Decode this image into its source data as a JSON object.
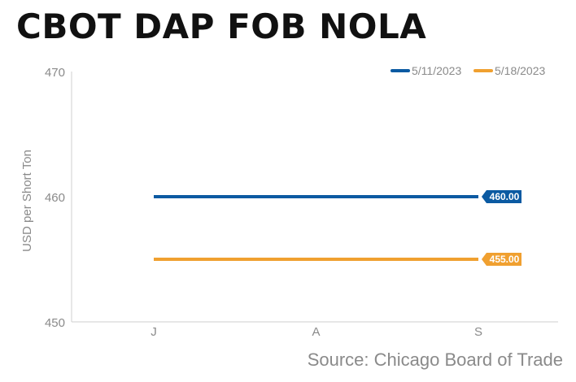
{
  "chart_data": {
    "type": "line",
    "title": "CBOT DAP FOB NOLA",
    "ylabel": "USD per Short Ton",
    "xlabel": "",
    "categories": [
      "J",
      "A",
      "S"
    ],
    "ylim": [
      450,
      470
    ],
    "yticks": [
      450,
      460,
      470
    ],
    "grid": false,
    "legend_position": "top-right",
    "series": [
      {
        "name": "5/11/2023",
        "color": "#0b5aa2",
        "values": [
          460,
          460,
          460
        ],
        "end_label": "460.00"
      },
      {
        "name": "5/18/2023",
        "color": "#f0a030",
        "values": [
          455,
          455,
          455
        ],
        "end_label": "455.00"
      }
    ],
    "source": "Source: Chicago Board of Trade"
  }
}
